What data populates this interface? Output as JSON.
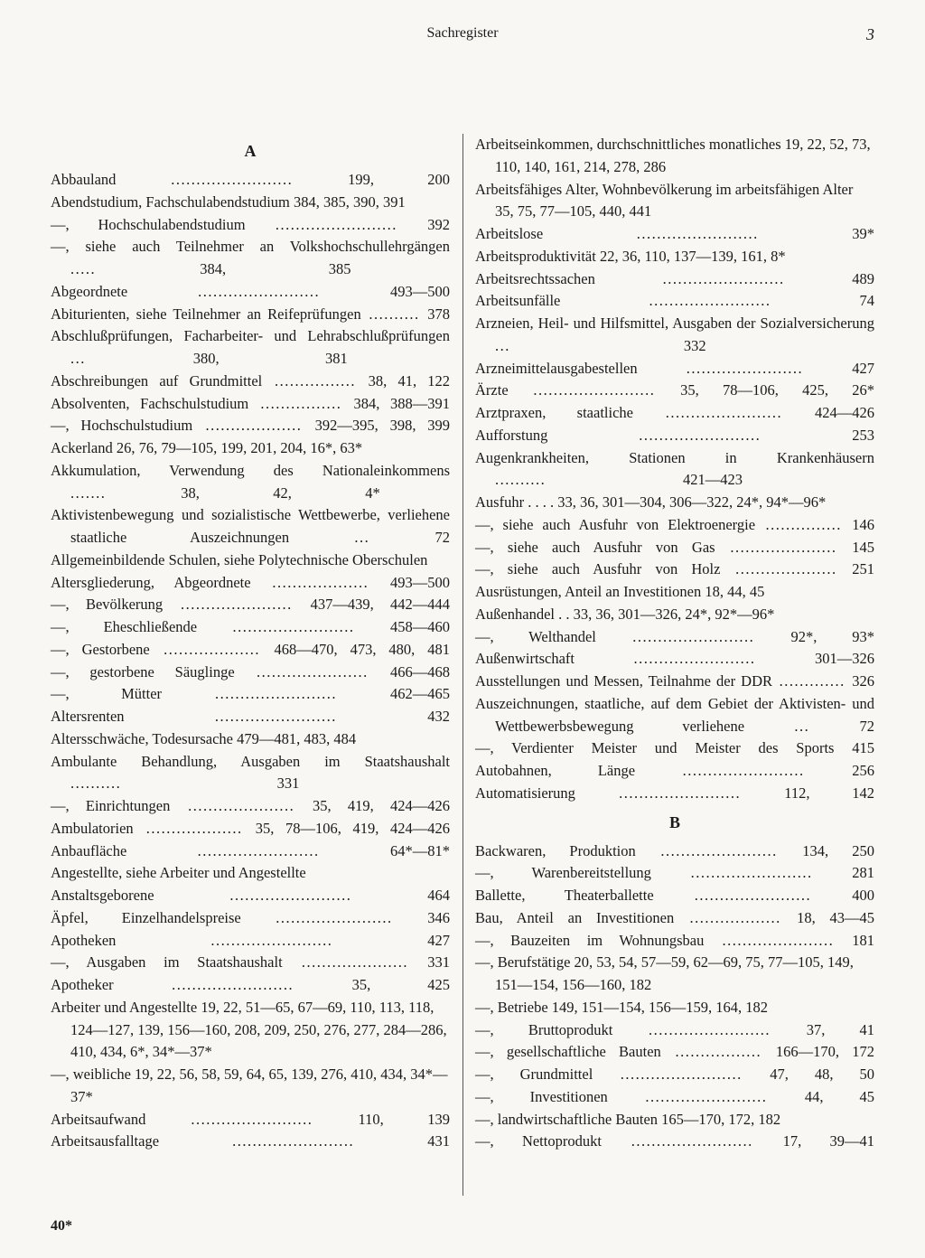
{
  "header": {
    "title": "Sachregister",
    "page_number": "3"
  },
  "footer": "40*",
  "sections": [
    {
      "letter": "A",
      "entries": [
        {
          "term": "Abbauland",
          "pages": "199, 200",
          "dots": true
        },
        {
          "term": "Abendstudium, Fachschulabendstudium 384, 385, 390, 391",
          "pages": "",
          "dots": false,
          "no_pages": true
        },
        {
          "term": "—, Hochschulabendstudium",
          "pages": "392",
          "dots": true
        },
        {
          "term": "—, siehe auch Teilnehmer an Volkshochschullehrgängen",
          "pages": "384, 385",
          "dots": true
        },
        {
          "term": "Abgeordnete",
          "pages": "493—500",
          "dots": true
        },
        {
          "term": "Abiturienten, siehe Teilnehmer an Reifeprüfungen",
          "pages": "378",
          "dots": true
        },
        {
          "term": "Abschlußprüfungen, Facharbeiter- und Lehrabschlußprüfungen",
          "pages": "380, 381",
          "dots": true
        },
        {
          "term": "Abschreibungen auf Grundmittel",
          "pages": "38, 41, 122",
          "dots": true
        },
        {
          "term": "Absolventen, Fachschulstudium",
          "pages": "384, 388—391",
          "dots": true
        },
        {
          "term": "—, Hochschulstudium",
          "pages": "392—395, 398, 399",
          "dots": true
        },
        {
          "term": "Ackerland  26, 76, 79—105, 199, 201, 204, 16*, 63*",
          "pages": "",
          "dots": false,
          "no_pages": true
        },
        {
          "term": "Akkumulation, Verwendung des Nationaleinkommens",
          "pages": "38, 42, 4*",
          "dots": true
        },
        {
          "term": "Aktivistenbewegung und sozialistische Wettbewerbe, verliehene staatliche Auszeichnungen",
          "pages": "72",
          "dots": true
        },
        {
          "term": "Allgemeinbildende Schulen, siehe Polytechnische Oberschulen",
          "pages": "",
          "dots": false,
          "no_pages": true
        },
        {
          "term": "Altersgliederung, Abgeordnete",
          "pages": "493—500",
          "dots": true
        },
        {
          "term": "—, Bevölkerung",
          "pages": "437—439, 442—444",
          "dots": true
        },
        {
          "term": "—, Eheschließende",
          "pages": "458—460",
          "dots": true
        },
        {
          "term": "—, Gestorbene",
          "pages": "468—470, 473, 480, 481",
          "dots": true
        },
        {
          "term": "—, gestorbene Säuglinge",
          "pages": "466—468",
          "dots": true
        },
        {
          "term": "—, Mütter",
          "pages": "462—465",
          "dots": true
        },
        {
          "term": "Altersrenten",
          "pages": "432",
          "dots": true
        },
        {
          "term": "Altersschwäche, Todesursache 479—481, 483, 484",
          "pages": "",
          "dots": false,
          "no_pages": true
        },
        {
          "term": "Ambulante Behandlung, Ausgaben im Staatshaushalt",
          "pages": "331",
          "dots": true
        },
        {
          "term": "—, Einrichtungen",
          "pages": "35, 419, 424—426",
          "dots": true
        },
        {
          "term": "Ambulatorien",
          "pages": "35, 78—106, 419, 424—426",
          "dots": true
        },
        {
          "term": "Anbaufläche",
          "pages": "64*—81*",
          "dots": true
        },
        {
          "term": "Angestellte, siehe Arbeiter und Angestellte",
          "pages": "",
          "dots": false,
          "no_pages": true
        },
        {
          "term": "Anstaltsgeborene",
          "pages": "464",
          "dots": true
        },
        {
          "term": "Äpfel, Einzelhandelspreise",
          "pages": "346",
          "dots": true
        },
        {
          "term": "Apotheken",
          "pages": "427",
          "dots": true
        },
        {
          "term": "—, Ausgaben im Staatshaushalt",
          "pages": "331",
          "dots": true
        },
        {
          "term": "Apotheker",
          "pages": "35, 425",
          "dots": true
        },
        {
          "term": "Arbeiter und Angestellte 19, 22, 51—65, 67—69, 110, 113, 118, 124—127, 139, 156—160, 208, 209, 250, 276, 277, 284—286, 410, 434, 6*, 34*—37*",
          "pages": "",
          "dots": false,
          "no_pages": true
        },
        {
          "term": "—, weibliche 19, 22, 56, 58, 59, 64, 65, 139, 276, 410, 434, 34*—37*",
          "pages": "",
          "dots": false,
          "no_pages": true
        },
        {
          "term": "Arbeitsaufwand",
          "pages": "110, 139",
          "dots": true
        },
        {
          "term": "Arbeitsausfalltage",
          "pages": "431",
          "dots": true
        },
        {
          "term": "Arbeitseinkommen, durchschnittliches monatliches 19, 22, 52, 73, 110, 140, 161, 214, 278, 286",
          "pages": "",
          "dots": false,
          "no_pages": true
        },
        {
          "term": "Arbeitsfähiges Alter, Wohnbevölkerung im arbeitsfähigen Alter 35, 75, 77—105, 440, 441",
          "pages": "",
          "dots": false,
          "no_pages": true
        },
        {
          "term": "Arbeitslose",
          "pages": "39*",
          "dots": true
        },
        {
          "term": "Arbeitsproduktivität 22, 36, 110, 137—139, 161, 8*",
          "pages": "",
          "dots": false,
          "no_pages": true
        },
        {
          "term": "Arbeitsrechtssachen",
          "pages": "489",
          "dots": true
        },
        {
          "term": "Arbeitsunfälle",
          "pages": "74",
          "dots": true
        },
        {
          "term": "Arzneien, Heil- und Hilfsmittel, Ausgaben der Sozialversicherung",
          "pages": "332",
          "dots": true
        },
        {
          "term": "Arzneimittelausgabestellen",
          "pages": "427",
          "dots": true
        },
        {
          "term": "Ärzte",
          "pages": "35, 78—106, 425, 26*",
          "dots": true
        },
        {
          "term": "Arztpraxen, staatliche",
          "pages": "424—426",
          "dots": true
        },
        {
          "term": "Aufforstung",
          "pages": "253",
          "dots": true
        },
        {
          "term": "Augenkrankheiten, Stationen in Krankenhäusern",
          "pages": "421—423",
          "dots": true
        },
        {
          "term": "Ausfuhr  . . . .  33, 36, 301—304, 306—322, 24*, 94*—96*",
          "pages": "",
          "dots": false,
          "no_pages": true
        },
        {
          "term": "—, siehe auch Ausfuhr von Elektroenergie",
          "pages": "146",
          "dots": true
        },
        {
          "term": "—, siehe auch Ausfuhr von Gas",
          "pages": "145",
          "dots": true
        },
        {
          "term": "—, siehe auch Ausfuhr von Holz",
          "pages": "251",
          "dots": true
        },
        {
          "term": "Ausrüstungen, Anteil an Investitionen 18, 44, 45",
          "pages": "",
          "dots": false,
          "no_pages": true
        },
        {
          "term": "Außenhandel . . 33, 36, 301—326, 24*, 92*—96*",
          "pages": "",
          "dots": false,
          "no_pages": true
        },
        {
          "term": "—, Welthandel",
          "pages": "92*, 93*",
          "dots": true
        },
        {
          "term": "Außenwirtschaft",
          "pages": "301—326",
          "dots": true
        },
        {
          "term": "Ausstellungen und Messen, Teilnahme der DDR",
          "pages": "326",
          "dots": true
        },
        {
          "term": "Auszeichnungen, staatliche, auf dem Gebiet der Aktivisten- und Wettbewerbsbewegung verliehene",
          "pages": "72",
          "dots": true
        },
        {
          "term": "—, Verdienter Meister und Meister des Sports",
          "pages": "415",
          "dots": false
        },
        {
          "term": "Autobahnen, Länge",
          "pages": "256",
          "dots": true
        },
        {
          "term": "Automatisierung",
          "pages": "112, 142",
          "dots": true
        }
      ]
    },
    {
      "letter": "B",
      "entries": [
        {
          "term": "Backwaren, Produktion",
          "pages": "134, 250",
          "dots": true
        },
        {
          "term": "—, Warenbereitstellung",
          "pages": "281",
          "dots": true
        },
        {
          "term": "Ballette, Theaterballette",
          "pages": "400",
          "dots": true
        },
        {
          "term": "Bau, Anteil an Investitionen",
          "pages": "18, 43—45",
          "dots": true
        },
        {
          "term": "—, Bauzeiten im Wohnungsbau",
          "pages": "181",
          "dots": true
        },
        {
          "term": "—, Berufstätige 20, 53, 54, 57—59, 62—69, 75, 77—105, 149, 151—154, 156—160, 182",
          "pages": "",
          "dots": false,
          "no_pages": true
        },
        {
          "term": "—, Betriebe  149, 151—154, 156—159, 164, 182",
          "pages": "",
          "dots": false,
          "no_pages": true
        },
        {
          "term": "—, Bruttoprodukt",
          "pages": "37, 41",
          "dots": true
        },
        {
          "term": "—, gesellschaftliche Bauten",
          "pages": "166—170, 172",
          "dots": true
        },
        {
          "term": "—, Grundmittel",
          "pages": "47, 48, 50",
          "dots": true
        },
        {
          "term": "—, Investitionen",
          "pages": "44, 45",
          "dots": true
        },
        {
          "term": "—, landwirtschaftliche Bauten  165—170, 172, 182",
          "pages": "",
          "dots": false,
          "no_pages": true
        },
        {
          "term": "—, Nettoprodukt",
          "pages": "17, 39—41",
          "dots": true
        }
      ]
    }
  ]
}
